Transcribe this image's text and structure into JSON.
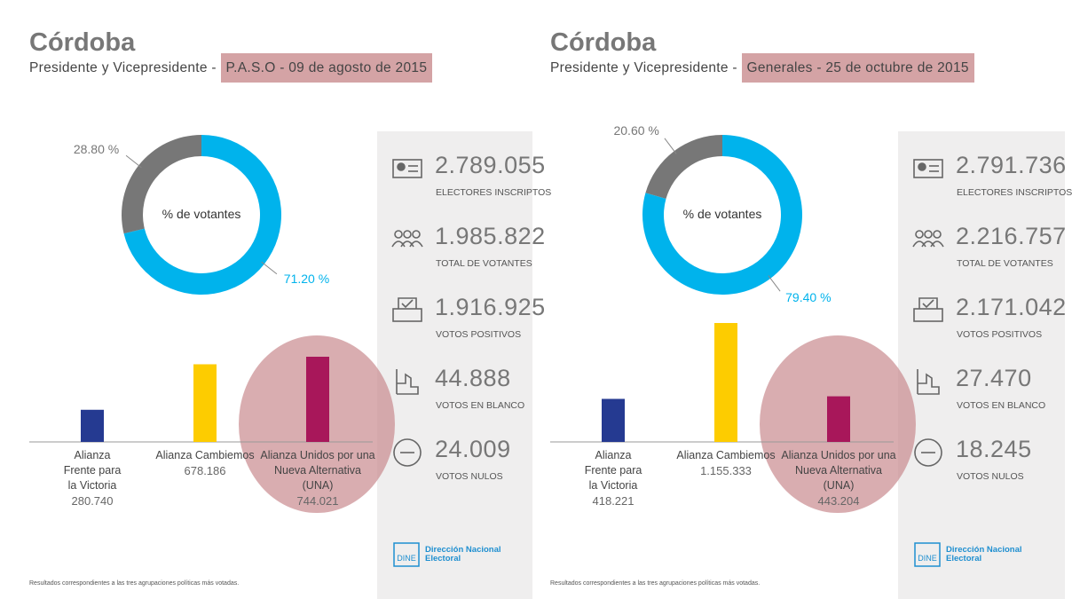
{
  "chart_data": [
    {
      "type": "pie",
      "donut": true,
      "center_label": "% de votantes",
      "values": [
        28.8,
        71.2
      ],
      "value_labels": [
        "28.80 %",
        "71.20 %"
      ],
      "colors": [
        "#777777",
        "#00b3ec"
      ]
    },
    {
      "type": "bar",
      "categories": [
        "Alianza Frente para la Victoria",
        "Alianza Cambiemos",
        "Alianza Unidos por una Nueva Alternativa (UNA)"
      ],
      "values": [
        280740,
        678186,
        744021
      ],
      "value_labels": [
        "280.740",
        "678.186",
        "744.021"
      ],
      "colors": [
        "#253a91",
        "#fdcc00",
        "#a8175a"
      ],
      "ylim": [
        0,
        1085000
      ]
    },
    {
      "type": "pie",
      "donut": true,
      "center_label": "% de votantes",
      "values": [
        20.6,
        79.4
      ],
      "value_labels": [
        "20.60 %",
        "79.40 %"
      ],
      "colors": [
        "#777777",
        "#00b3ec"
      ]
    },
    {
      "type": "bar",
      "categories": [
        "Alianza Frente para la Victoria",
        "Alianza Cambiemos",
        "Alianza Unidos por una Nueva Alternativa (UNA)"
      ],
      "values": [
        418221,
        1155333,
        443204
      ],
      "value_labels": [
        "418.221",
        "1.155.333",
        "443.204"
      ],
      "colors": [
        "#253a91",
        "#fdcc00",
        "#a8175a"
      ],
      "ylim": [
        0,
        1207000
      ]
    }
  ],
  "panels": [
    {
      "title": "Córdoba",
      "subtitle": "Presidente y Vicepresidente -",
      "highlight": "P.A.S.O - 09 de agosto de 2015",
      "stats": [
        {
          "value": "2.789.055",
          "label": "ELECTORES INSCRIPTOS"
        },
        {
          "value": "1.985.822",
          "label": "TOTAL DE VOTANTES"
        },
        {
          "value": "1.916.925",
          "label": "VOTOS POSITIVOS"
        },
        {
          "value": "44.888",
          "label": "VOTOS EN BLANCO"
        },
        {
          "value": "24.009",
          "label": "VOTOS NULOS"
        }
      ],
      "logo": {
        "abbr": "DINE",
        "name": "Dirección Nacional Electoral"
      },
      "footnote": "Resultados correspondientes a las tres agrupaciones políticas más votadas."
    },
    {
      "title": "Córdoba",
      "subtitle": "Presidente y Vicepresidente -",
      "highlight": "Generales - 25 de octubre de 2015",
      "stats": [
        {
          "value": "2.791.736",
          "label": "ELECTORES INSCRIPTOS"
        },
        {
          "value": "2.216.757",
          "label": "TOTAL DE VOTANTES"
        },
        {
          "value": "2.171.042",
          "label": "VOTOS POSITIVOS"
        },
        {
          "value": "27.470",
          "label": "VOTOS EN BLANCO"
        },
        {
          "value": "18.245",
          "label": "VOTOS NULOS"
        }
      ],
      "logo": {
        "abbr": "DINE",
        "name": "Dirección Nacional Electoral"
      },
      "footnote": "Resultados correspondientes a las tres agrupaciones políticas más votadas."
    }
  ]
}
